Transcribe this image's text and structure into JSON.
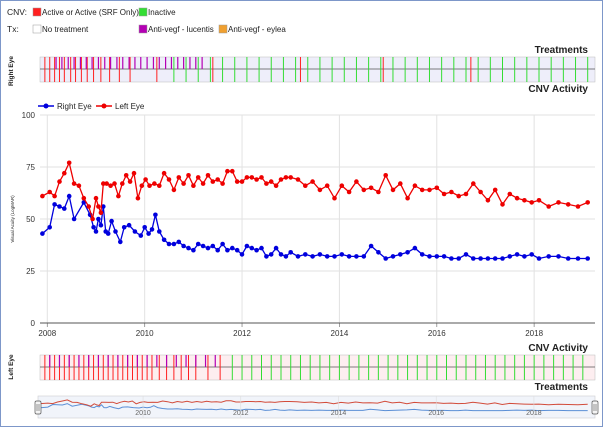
{
  "legend": {
    "cnv_label": "CNV:",
    "tx_label": "Tx:",
    "items": [
      {
        "key": "active",
        "label": "Active or Active (SRF Only)",
        "color": "#ff2020"
      },
      {
        "key": "inactive",
        "label": "Inactive",
        "color": "#33dd33"
      },
      {
        "key": "no_treatment",
        "label": "No treatment",
        "color": "#ffffff"
      },
      {
        "key": "lucentis",
        "label": "Anti-vegf - lucentis",
        "color": "#b400b4"
      },
      {
        "key": "eylea",
        "label": "Anti-vegf - eylea",
        "color": "#f0a030"
      }
    ]
  },
  "top_strip": {
    "title": "Treatments",
    "eye_label": "Right Eye",
    "background": "#eeeefa",
    "treatment_dates": [
      2008.18,
      2008.3,
      2008.43,
      2008.55,
      2008.68,
      2008.8,
      2008.92,
      2009.05,
      2009.18,
      2009.3,
      2009.43,
      2009.55,
      2009.68,
      2009.8,
      2009.92,
      2010.05,
      2010.18,
      2010.3,
      2010.43,
      2010.55,
      2010.68,
      2010.8,
      2010.93,
      2011.05,
      2011.18
    ],
    "active_dates": [
      2007.95,
      2008.05,
      2008.15,
      2008.25,
      2008.35,
      2008.48,
      2008.58,
      2008.7,
      2008.82,
      2008.95,
      2009.1,
      2009.28,
      2009.48,
      2009.7,
      2010.25,
      2011.4,
      2013.2,
      2014.9,
      2016.7
    ],
    "inactive_dates": [
      2010.6,
      2010.85,
      2011.1,
      2011.35,
      2011.6,
      2011.85,
      2012.1,
      2012.35,
      2012.6,
      2012.85,
      2013.1,
      2013.35,
      2013.6,
      2013.85,
      2014.1,
      2014.35,
      2014.6,
      2014.85,
      2015.1,
      2015.35,
      2015.6,
      2015.85,
      2016.1,
      2016.35,
      2016.6,
      2016.85,
      2017.1,
      2017.35,
      2017.6,
      2017.85,
      2018.1,
      2018.35,
      2018.6,
      2018.85,
      2019.1
    ]
  },
  "main_chart": {
    "title": "CNV Activity",
    "ylabel": "Visual Acuity (LogMAR)",
    "grid": true
  },
  "bottom_strip": {
    "title": "CNV Activity",
    "eye_label": "Left Eye",
    "background": "#fdeef0",
    "active_dates": [
      2007.95,
      2008.05,
      2008.15,
      2008.25,
      2008.35,
      2008.45,
      2008.55,
      2008.65,
      2008.75,
      2008.85,
      2008.95,
      2009.05,
      2009.15,
      2009.25,
      2009.35,
      2009.45,
      2009.55,
      2009.65,
      2009.75,
      2009.85,
      2009.95,
      2010.05,
      2010.15,
      2010.3,
      2010.45,
      2010.6,
      2010.75,
      2010.9,
      2011.05,
      2011.3,
      2011.55
    ],
    "inactive_dates": [
      2011.8,
      2012.0,
      2012.2,
      2012.4,
      2012.6,
      2012.8,
      2013.0,
      2013.2,
      2013.4,
      2013.6,
      2013.8,
      2014.0,
      2014.2,
      2014.4,
      2014.6,
      2014.8,
      2015.0,
      2015.2,
      2015.4,
      2015.6,
      2015.8,
      2016.0,
      2016.2,
      2016.4,
      2016.6,
      2016.8,
      2017.0,
      2017.2,
      2017.4,
      2017.6,
      2017.8,
      2018.0,
      2018.2,
      2018.4,
      2018.6,
      2018.8,
      2019.0
    ],
    "treatment_dates": [
      2008.05,
      2008.25,
      2008.45,
      2008.65,
      2008.85,
      2009.05,
      2009.25,
      2009.45,
      2009.65,
      2009.85,
      2010.05,
      2010.25,
      2010.45,
      2010.65,
      2010.85,
      2011.05,
      2011.25,
      2011.45
    ]
  },
  "treatments_footer": {
    "title": "Treatments"
  },
  "navigator": {
    "tick_labels": [
      "2010",
      "2012",
      "2014",
      "2016",
      "2018"
    ]
  },
  "chart_data": {
    "type": "line",
    "title": "CNV Activity",
    "xlabel": "",
    "ylabel": "Visual Acuity (LogMAR)",
    "xlim": [
      2007.85,
      2019.25
    ],
    "ylim": [
      0,
      100
    ],
    "x_ticks": [
      2008,
      2010,
      2012,
      2014,
      2016,
      2018
    ],
    "y_ticks": [
      0,
      25,
      50,
      75,
      100
    ],
    "legend_position": "top-left",
    "series": [
      {
        "name": "Right Eye",
        "color": "#0000dd",
        "x": [
          2007.9,
          2008.05,
          2008.15,
          2008.25,
          2008.35,
          2008.45,
          2008.55,
          2008.75,
          2008.88,
          2008.95,
          2009.0,
          2009.05,
          2009.1,
          2009.15,
          2009.2,
          2009.25,
          2009.32,
          2009.4,
          2009.5,
          2009.58,
          2009.68,
          2009.8,
          2009.92,
          2010.0,
          2010.08,
          2010.15,
          2010.22,
          2010.3,
          2010.4,
          2010.5,
          2010.6,
          2010.7,
          2010.8,
          2010.9,
          2011.0,
          2011.1,
          2011.2,
          2011.3,
          2011.4,
          2011.5,
          2011.6,
          2011.7,
          2011.8,
          2011.9,
          2012.0,
          2012.1,
          2012.2,
          2012.3,
          2012.4,
          2012.5,
          2012.6,
          2012.7,
          2012.8,
          2012.9,
          2013.0,
          2013.15,
          2013.3,
          2013.45,
          2013.6,
          2013.75,
          2013.9,
          2014.05,
          2014.2,
          2014.35,
          2014.5,
          2014.65,
          2014.8,
          2014.95,
          2015.1,
          2015.25,
          2015.4,
          2015.55,
          2015.7,
          2015.85,
          2016.0,
          2016.15,
          2016.3,
          2016.45,
          2016.6,
          2016.75,
          2016.9,
          2017.05,
          2017.2,
          2017.35,
          2017.5,
          2017.65,
          2017.8,
          2017.95,
          2018.1,
          2018.3,
          2018.5,
          2018.7,
          2018.9,
          2019.1
        ],
        "y": [
          43,
          46,
          57,
          56,
          55,
          61,
          50,
          58,
          52,
          46,
          44,
          50,
          47,
          56,
          44,
          43,
          49,
          44,
          39,
          46,
          47,
          44,
          42,
          46,
          43,
          45,
          52,
          44,
          40,
          38,
          38,
          39,
          37,
          36,
          35,
          38,
          37,
          36,
          37,
          35,
          38,
          35,
          36,
          35,
          33,
          37,
          36,
          35,
          36,
          32,
          33,
          36,
          33,
          32,
          34,
          32,
          33,
          32,
          33,
          32,
          32,
          33,
          32,
          32,
          32,
          37,
          34,
          31,
          32,
          33,
          34,
          36,
          33,
          32,
          32,
          32,
          31,
          31,
          33,
          31,
          31,
          31,
          31,
          31,
          32,
          33,
          32,
          33,
          31,
          32,
          32,
          31,
          31,
          31
        ]
      },
      {
        "name": "Left Eye",
        "color": "#ee0000",
        "x": [
          2007.9,
          2008.05,
          2008.15,
          2008.25,
          2008.35,
          2008.45,
          2008.55,
          2008.65,
          2008.75,
          2008.85,
          2008.93,
          2009.0,
          2009.05,
          2009.1,
          2009.15,
          2009.22,
          2009.3,
          2009.38,
          2009.46,
          2009.54,
          2009.62,
          2009.7,
          2009.78,
          2009.86,
          2009.94,
          2010.02,
          2010.1,
          2010.2,
          2010.3,
          2010.4,
          2010.5,
          2010.6,
          2010.7,
          2010.8,
          2010.9,
          2011.0,
          2011.1,
          2011.2,
          2011.3,
          2011.4,
          2011.5,
          2011.6,
          2011.7,
          2011.8,
          2011.9,
          2012.0,
          2012.1,
          2012.2,
          2012.3,
          2012.4,
          2012.5,
          2012.6,
          2012.7,
          2012.8,
          2012.9,
          2013.0,
          2013.15,
          2013.3,
          2013.45,
          2013.6,
          2013.75,
          2013.9,
          2014.05,
          2014.2,
          2014.35,
          2014.5,
          2014.65,
          2014.8,
          2014.95,
          2015.1,
          2015.25,
          2015.4,
          2015.55,
          2015.7,
          2015.85,
          2016.0,
          2016.15,
          2016.3,
          2016.45,
          2016.6,
          2016.75,
          2016.9,
          2017.05,
          2017.2,
          2017.35,
          2017.5,
          2017.65,
          2017.8,
          2017.95,
          2018.1,
          2018.3,
          2018.5,
          2018.7,
          2018.9,
          2019.1
        ],
        "y": [
          61,
          63,
          61,
          68,
          72,
          77,
          67,
          66,
          60,
          56,
          50,
          60,
          56,
          53,
          67,
          67,
          66,
          67,
          61,
          67,
          71,
          68,
          72,
          60,
          66,
          69,
          66,
          67,
          66,
          72,
          69,
          64,
          70,
          67,
          71,
          66,
          70,
          67,
          71,
          68,
          69,
          67,
          73,
          73,
          68,
          68,
          70,
          70,
          69,
          70,
          67,
          68,
          66,
          69,
          70,
          70,
          69,
          66,
          68,
          64,
          66,
          60,
          66,
          63,
          68,
          64,
          65,
          63,
          71,
          64,
          67,
          60,
          66,
          64,
          64,
          65,
          62,
          63,
          61,
          62,
          67,
          63,
          59,
          64,
          57,
          62,
          60,
          59,
          58,
          59,
          56,
          58,
          57,
          56,
          58
        ]
      }
    ]
  }
}
